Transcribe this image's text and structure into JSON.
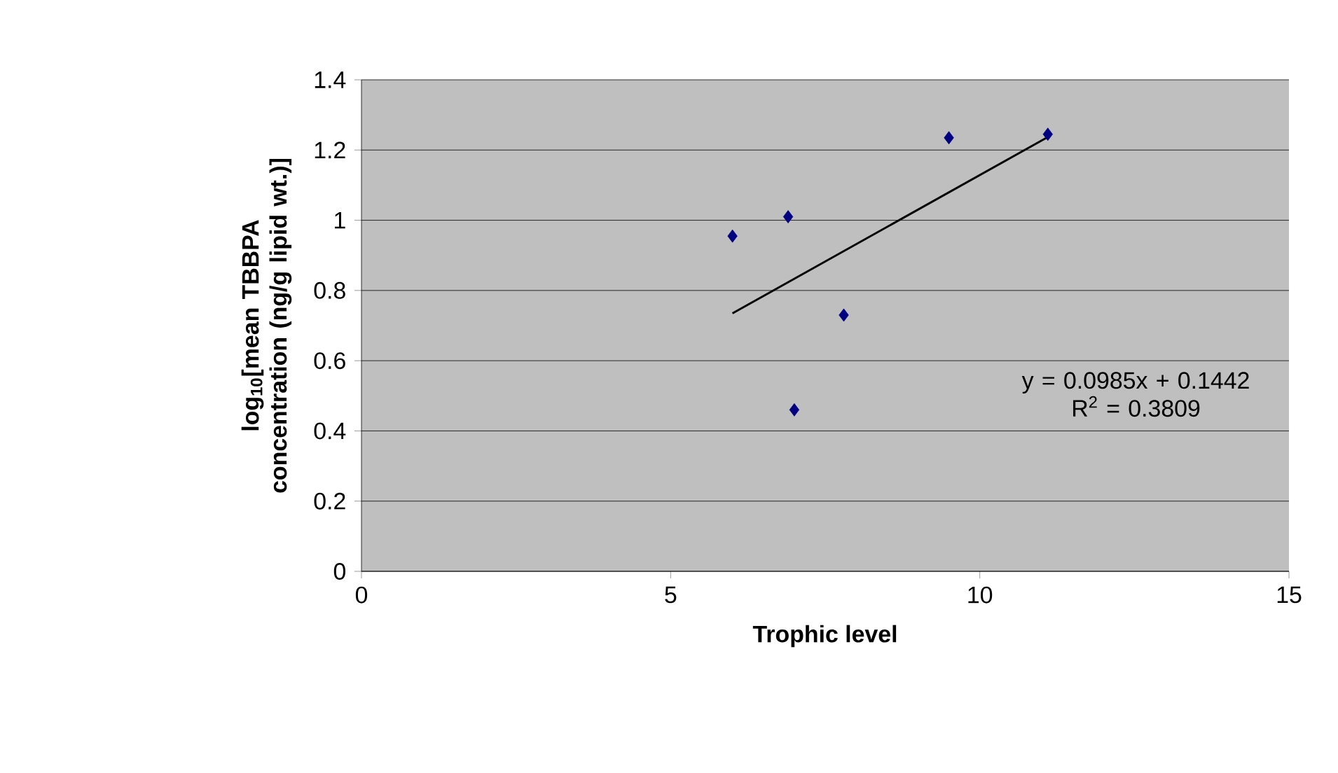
{
  "chart_data": {
    "type": "scatter",
    "xlabel": "Trophic level",
    "ylabel": "log$_{10}$[mean TBBPA concentration (ng/g lipid wt.)]",
    "xlim": [
      0,
      15
    ],
    "xticks": [
      0,
      5,
      10,
      15
    ],
    "ylim": [
      0,
      1.4
    ],
    "yticks": [
      0,
      0.2,
      0.4,
      0.6,
      0.8,
      1,
      1.2,
      1.4
    ],
    "grid": "y",
    "marker": "diamond",
    "series": [
      {
        "color": "#000080",
        "x": [
          6.0,
          6.9,
          7.0,
          7.8,
          9.5,
          11.1
        ],
        "values": [
          0.955,
          1.01,
          0.46,
          0.73,
          1.235,
          1.245
        ]
      },
      {
        "type": "line",
        "color": "#000000",
        "marker": "none",
        "x": [
          6.0,
          11.1
        ],
        "values": [
          0.735,
          1.237
        ]
      }
    ],
    "annotations": [
      "y = 0.0985x + 0.1442",
      "R$^{2}$ = 0.3809"
    ]
  }
}
